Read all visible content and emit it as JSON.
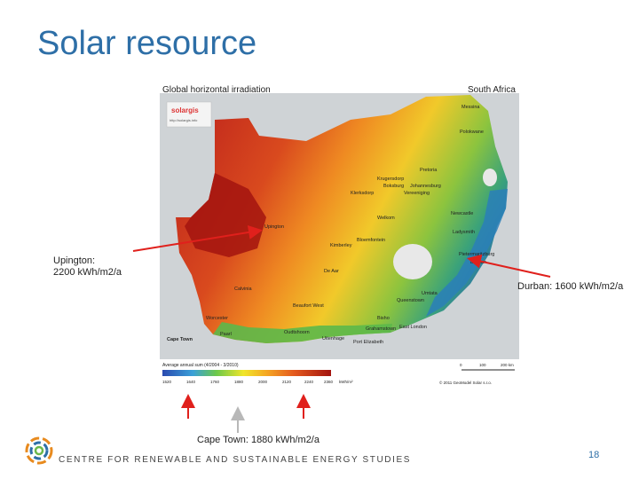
{
  "slide": {
    "title": "Solar resource",
    "page_number": "18",
    "footer": "CENTRE FOR RENEWABLE AND SUSTAINABLE ENERGY STUDIES"
  },
  "map": {
    "title_left": "Global horizontal irradiation",
    "title_right": "South Africa",
    "brand": "solargis",
    "brand_url": "http://solargis.info",
    "legend_title": "Average annual sum (4/2004 - 3/2010)",
    "legend_ticks": [
      "1520",
      "1640",
      "1760",
      "1880",
      "2000",
      "2120",
      "2240",
      "2360"
    ],
    "legend_unit": "kWh/m²",
    "scale_labels": [
      "0",
      "100",
      "200 km"
    ],
    "copyright": "© 2011 GeoModel Solar s.r.o.",
    "cities": [
      {
        "name": "Messina"
      },
      {
        "name": "Polokwane"
      },
      {
        "name": "Pretoria"
      },
      {
        "name": "Krugersdorp"
      },
      {
        "name": "Boksburg"
      },
      {
        "name": "Johannesburg"
      },
      {
        "name": "Vereeniging"
      },
      {
        "name": "Klerksdorp"
      },
      {
        "name": "Welkom"
      },
      {
        "name": "Newcastle"
      },
      {
        "name": "Ladysmith"
      },
      {
        "name": "Upington"
      },
      {
        "name": "Kimberley"
      },
      {
        "name": "Bloemfontein"
      },
      {
        "name": "Pietermaritzburg"
      },
      {
        "name": "Durban"
      },
      {
        "name": "De Aar"
      },
      {
        "name": "Calvinia"
      },
      {
        "name": "Queenstown"
      },
      {
        "name": "Umtata"
      },
      {
        "name": "Beaufort West"
      },
      {
        "name": "Bisho"
      },
      {
        "name": "Grahamstown"
      },
      {
        "name": "East London"
      },
      {
        "name": "Worcester"
      },
      {
        "name": "Paarl"
      },
      {
        "name": "Cape Town"
      },
      {
        "name": "Oudtshoorn"
      },
      {
        "name": "Uitenhage"
      },
      {
        "name": "Port Elizabeth"
      }
    ]
  },
  "annotations": {
    "upington_line1": "Upington:",
    "upington_line2": "2200 kWh/m2/a",
    "durban": "Durban: 1600 kWh/m2/a",
    "capetown": "Cape Town: 1880 kWh/m2/a"
  },
  "colors": {
    "title": "#2e6fa7",
    "arrow_red": "#e0201c",
    "arrow_grey": "#b8b8b8"
  }
}
